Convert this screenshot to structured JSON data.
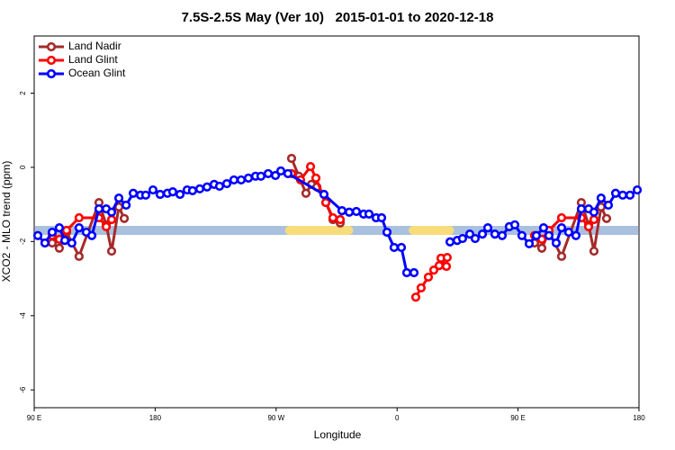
{
  "chart_data": {
    "type": "line",
    "title": "7.5S-2.5S May (Ver 10)   2015-01-01 to 2020-12-18",
    "x_label": "Longitude",
    "y_label": "XCO2 - MLO trend (ppm)",
    "xlim": [
      90,
      540
    ],
    "ylim": [
      -6.48,
      3.54
    ],
    "xticks": [
      {
        "value": 90,
        "label": "90 E"
      },
      180,
      {
        "value": 270,
        "label": "90 W"
      },
      {
        "value": 360,
        "label": "0"
      },
      {
        "value": 450,
        "label": "90 E"
      },
      {
        "value": 540,
        "label": "180"
      }
    ],
    "yticks": [
      2,
      0,
      -2,
      -4,
      -6
    ],
    "legend": "top-left",
    "band": {
      "y": -1.7,
      "color": "#a9c0de",
      "highlight_color": "#f9dc7a",
      "highlights": [
        [
          280,
          324
        ],
        [
          372,
          399
        ]
      ]
    },
    "series": [
      {
        "name": "Land Nadir",
        "color": "#a52a2a",
        "x": [
          103.4,
          108.7,
          114.1,
          123.4,
          138.2,
          143.6,
          147.6,
          153.0,
          157.0,
          null,
          281.5,
          286.9,
          292.2,
          296.3,
          300.3,
          307.0,
          312.3,
          317.7,
          null,
          462.3,
          467.7,
          473.0,
          482.4,
          497.1,
          502.5,
          506.5,
          511.8,
          515.9
        ],
        "values": [
          -2.04,
          -2.18,
          -1.75,
          -2.4,
          -0.95,
          -1.55,
          -2.26,
          -1.07,
          -1.38,
          null,
          0.24,
          -0.24,
          -0.7,
          -0.46,
          -0.53,
          -0.95,
          -1.41,
          -1.5,
          null,
          -2.04,
          -2.18,
          -1.75,
          -2.4,
          -0.95,
          -1.55,
          -2.26,
          -1.07,
          -1.38
        ]
      },
      {
        "name": "Land Glint",
        "color": "#ff0000",
        "x": [
          103.4,
          108.7,
          114.1,
          123.4,
          138.2,
          143.6,
          147.6,
          null,
          281.5,
          288.2,
          295.6,
          299.6,
          307.0,
          312.3,
          317.7,
          null,
          373.9,
          377.9,
          383.3,
          387.3,
          391.3,
          392.7,
          396.7,
          397.3,
          null,
          462.3,
          467.7,
          473.0,
          482.4,
          497.1,
          502.5,
          506.5
        ],
        "values": [
          -1.84,
          -1.94,
          -1.7,
          -1.36,
          -1.36,
          -1.6,
          -1.41,
          null,
          -0.17,
          -0.34,
          0.02,
          -0.29,
          -0.95,
          -1.36,
          -1.41,
          null,
          -3.5,
          -3.25,
          -2.96,
          -2.77,
          -2.65,
          -2.45,
          -2.67,
          -2.43,
          null,
          -1.84,
          -1.94,
          -1.7,
          -1.36,
          -1.36,
          -1.6,
          -1.41
        ]
      },
      {
        "name": "Ocean Glint",
        "color": "#0000ff",
        "x": [
          92.7,
          98.0,
          103.4,
          108.7,
          112.8,
          118.0,
          123.4,
          128.8,
          132.9,
          138.2,
          143.6,
          147.6,
          153.0,
          158.4,
          163.7,
          169.1,
          173.0,
          178.4,
          183.7,
          189.1,
          193.1,
          198.5,
          203.8,
          207.8,
          213.2,
          218.6,
          223.9,
          227.9,
          233.3,
          238.6,
          244.0,
          249.4,
          254.7,
          258.7,
          264.1,
          269.5,
          273.5,
          278.8,
          305.6,
          319.0,
          324.4,
          329.7,
          335.1,
          339.1,
          344.4,
          348.5,
          352.5,
          357.8,
          363.2,
          367.2,
          372.6,
          null,
          399.4,
          404.7,
          408.7,
          414.1,
          418.1,
          423.5,
          427.5,
          432.8,
          438.2,
          443.5,
          447.6,
          452.9,
          458.3,
          463.6,
          469.0,
          473.0,
          478.4,
          482.4,
          487.7,
          493.1,
          497.1,
          502.5,
          506.5,
          511.8,
          517.2,
          522.6,
          527.9,
          533.3,
          538.7
        ],
        "values": [
          -1.84,
          -2.04,
          -1.75,
          -1.63,
          -1.97,
          -2.04,
          -1.63,
          -1.75,
          -1.84,
          -1.12,
          -1.12,
          -1.21,
          -0.83,
          -1.02,
          -0.7,
          -0.75,
          -0.75,
          -0.61,
          -0.73,
          -0.7,
          -0.66,
          -0.73,
          -0.61,
          -0.63,
          -0.58,
          -0.53,
          -0.46,
          -0.51,
          -0.44,
          -0.34,
          -0.34,
          -0.29,
          -0.24,
          -0.24,
          -0.17,
          -0.22,
          -0.1,
          -0.17,
          -0.73,
          -1.17,
          -1.21,
          -1.19,
          -1.26,
          -1.26,
          -1.36,
          -1.36,
          -1.75,
          -2.16,
          -2.16,
          -2.84,
          -2.84,
          null,
          -2.01,
          -1.97,
          -1.92,
          -1.8,
          -1.92,
          -1.8,
          -1.63,
          -1.8,
          -1.84,
          -1.6,
          -1.55,
          -1.84,
          -2.06,
          -1.84,
          -1.63,
          -1.84,
          -2.04,
          -1.63,
          -1.75,
          -1.84,
          -1.12,
          -1.12,
          -1.21,
          -0.83,
          -1.02,
          -0.7,
          -0.75,
          -0.75,
          -0.61
        ]
      }
    ]
  }
}
